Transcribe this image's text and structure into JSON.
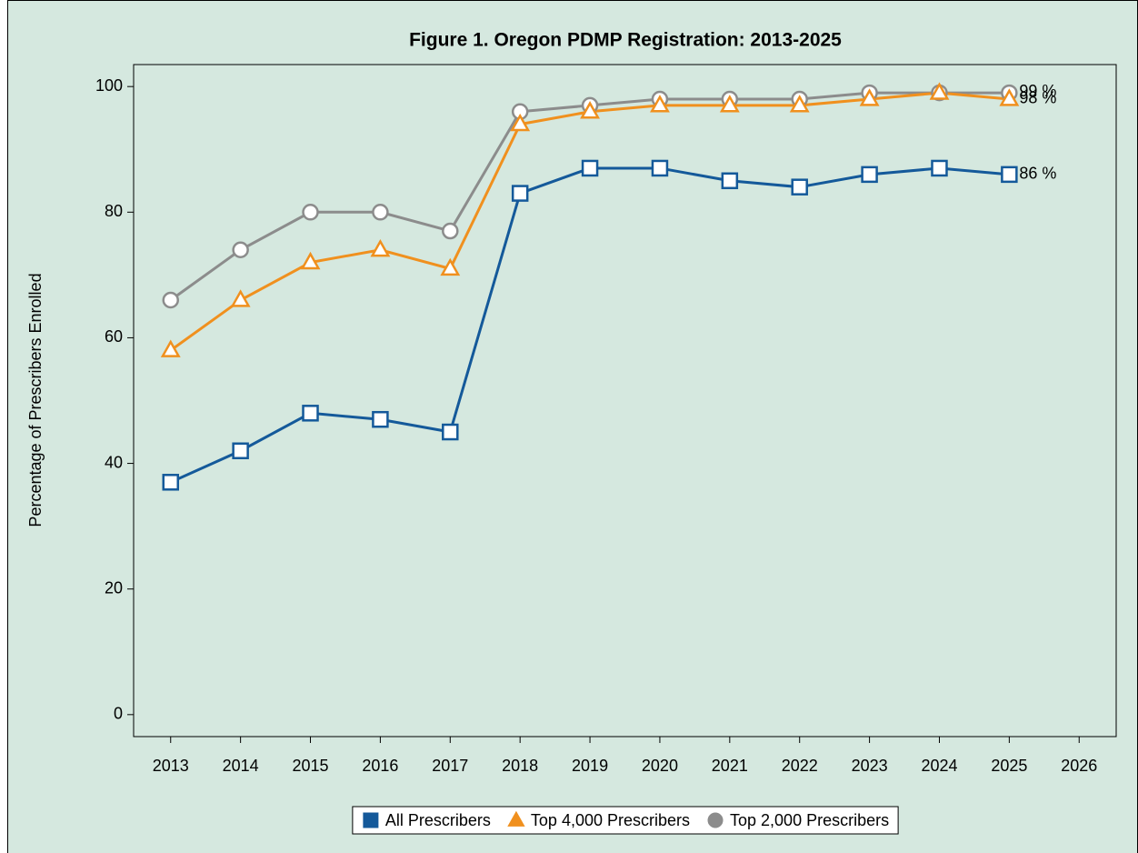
{
  "chart_data": {
    "type": "line",
    "title": "Figure 1. Oregon PDMP Registration: 2013-2025",
    "y_label": "Percentage of Prescribers Enrolled",
    "x": [
      2013,
      2014,
      2015,
      2016,
      2017,
      2018,
      2019,
      2020,
      2021,
      2022,
      2023,
      2024,
      2025
    ],
    "xlim": [
      2012.47,
      2026.53
    ],
    "xticks": [
      2013,
      2014,
      2015,
      2016,
      2017,
      2018,
      2019,
      2020,
      2021,
      2022,
      2023,
      2024,
      2025,
      2026
    ],
    "ylim": [
      -3.5,
      103.5
    ],
    "yticks": [
      0,
      20,
      40,
      60,
      80,
      100
    ],
    "grid": false,
    "legend": "bottom",
    "background": "#d5e8df",
    "series": [
      {
        "name": "All Prescribers",
        "color": "#14599a",
        "marker": "square",
        "values": [
          37,
          42,
          48,
          47,
          45,
          83,
          87,
          87,
          85,
          84,
          86,
          87,
          86
        ],
        "value_labels": [
          null,
          null,
          null,
          null,
          null,
          null,
          null,
          null,
          null,
          null,
          null,
          null,
          "86 %"
        ]
      },
      {
        "name": "Top 4,000 Prescribers",
        "color": "#f0901e",
        "marker": "triangle",
        "values": [
          58,
          66,
          72,
          74,
          71,
          94,
          96,
          97,
          97,
          97,
          98,
          99,
          98
        ],
        "value_labels": [
          null,
          null,
          null,
          null,
          null,
          null,
          null,
          null,
          null,
          null,
          null,
          null,
          "98 %"
        ]
      },
      {
        "name": "Top 2,000 Prescribers",
        "color": "#8c8c8c",
        "marker": "circle",
        "values": [
          66,
          74,
          80,
          80,
          77,
          96,
          97,
          98,
          98,
          98,
          99,
          99,
          99
        ],
        "value_labels": [
          null,
          null,
          null,
          null,
          null,
          null,
          null,
          null,
          null,
          null,
          null,
          null,
          "99 %"
        ]
      }
    ]
  }
}
